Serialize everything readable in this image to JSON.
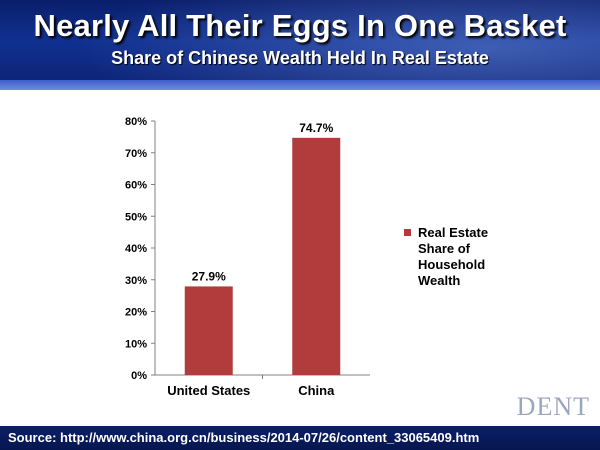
{
  "header": {
    "title": "Nearly All Their Eggs In One Basket",
    "subtitle": "Share of Chinese Wealth Held In Real Estate"
  },
  "footer": {
    "source": "Source: http://www.china.org.cn/business/2014-07/26/content_33065409.htm"
  },
  "logo": {
    "text": "DENT",
    "icon": "dent-research-logo"
  },
  "colors": {
    "bar": "#b23b3b",
    "header": "#10308f",
    "footer": "#06164f"
  },
  "chart_data": {
    "type": "bar",
    "categories": [
      "United States",
      "China"
    ],
    "series": [
      {
        "name": "Real Estate Share of Household Wealth",
        "values": [
          27.9,
          74.7
        ]
      }
    ],
    "data_labels": [
      "27.9%",
      "74.7%"
    ],
    "yticks": [
      "0%",
      "10%",
      "20%",
      "30%",
      "40%",
      "50%",
      "60%",
      "70%",
      "80%"
    ],
    "ylim": [
      0,
      80
    ],
    "legend": {
      "placement": "right",
      "lines": [
        "Real Estate",
        "Share of",
        "Household",
        "Wealth"
      ]
    },
    "grid": false
  }
}
